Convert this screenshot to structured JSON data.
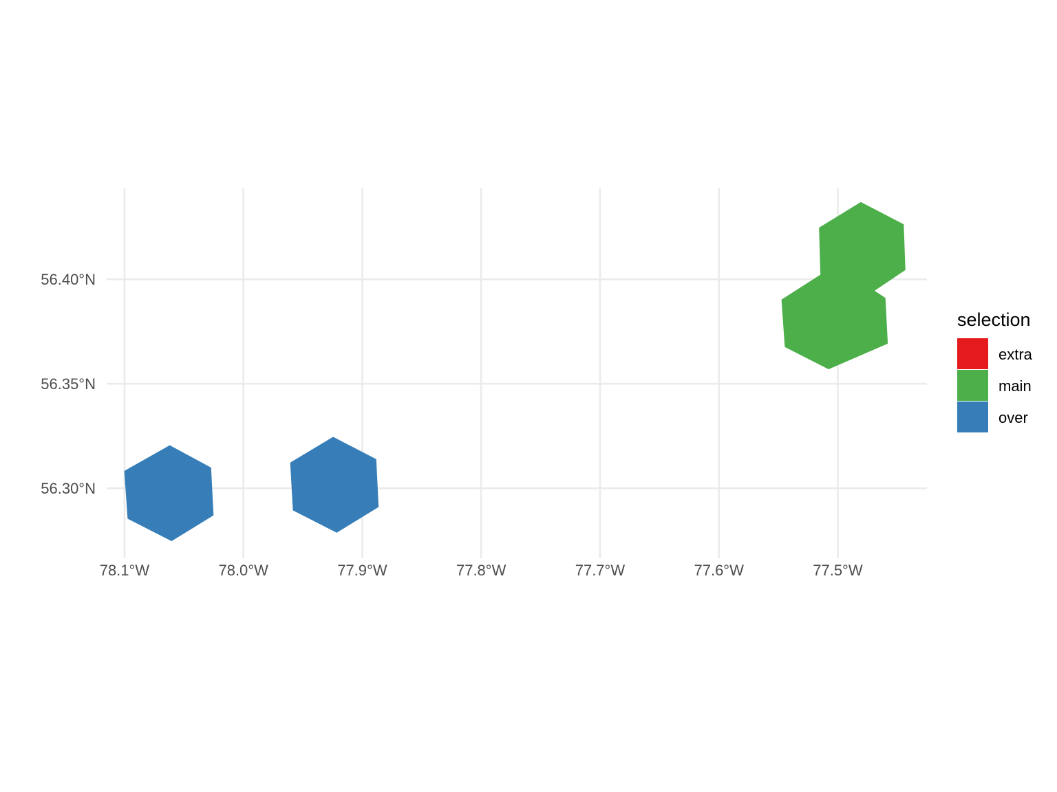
{
  "chart_data": {
    "type": "map",
    "xlim": [
      -78.115,
      -77.425
    ],
    "ylim": [
      56.2665,
      56.4435
    ],
    "x_ticks": [
      {
        "value": -78.1,
        "label": "78.1°W"
      },
      {
        "value": -78.0,
        "label": "78.0°W"
      },
      {
        "value": -77.9,
        "label": "77.9°W"
      },
      {
        "value": -77.8,
        "label": "77.8°W"
      },
      {
        "value": -77.7,
        "label": "77.7°W"
      },
      {
        "value": -77.6,
        "label": "77.6°W"
      },
      {
        "value": -77.5,
        "label": "77.5°W"
      }
    ],
    "y_ticks": [
      {
        "value": 56.3,
        "label": "56.30°N"
      },
      {
        "value": 56.35,
        "label": "56.35°N"
      },
      {
        "value": 56.4,
        "label": "56.40°N"
      }
    ],
    "grid": true,
    "legend": {
      "title": "selection",
      "position": "right",
      "entries": [
        {
          "label": "extra",
          "color": "#e41a1c"
        },
        {
          "label": "main",
          "color": "#4daf4a"
        },
        {
          "label": "over",
          "color": "#377eb8"
        }
      ]
    },
    "hexagons": [
      {
        "selection": "over",
        "center": [
          -78.062,
          56.298
        ],
        "vertices": [
          [
            -78.062,
            56.3204
          ],
          [
            -78.0274,
            56.3098
          ],
          [
            -78.0254,
            56.2871
          ],
          [
            -78.0604,
            56.2749
          ],
          [
            -78.0971,
            56.2855
          ],
          [
            -78.0999,
            56.3082
          ]
        ]
      },
      {
        "selection": "over",
        "center": [
          -77.922,
          56.302
        ],
        "vertices": [
          [
            -77.9245,
            56.3244
          ],
          [
            -77.8885,
            56.3138
          ],
          [
            -77.8865,
            56.2911
          ],
          [
            -77.9215,
            56.2789
          ],
          [
            -77.9581,
            56.2895
          ],
          [
            -77.9603,
            56.3122
          ]
        ]
      },
      {
        "selection": "main",
        "center": [
          -77.49,
          56.385
        ],
        "vertices": [
          [
            -77.4904,
            56.4024
          ],
          [
            -77.4602,
            56.391
          ],
          [
            -77.4582,
            56.3693
          ],
          [
            -77.5077,
            56.3571
          ],
          [
            -77.5443,
            56.3677
          ],
          [
            -77.5471,
            56.3902
          ],
          [
            -77.5143,
            56.4021
          ],
          [
            -77.5155,
            56.4246
          ],
          [
            -77.4806,
            56.4368
          ],
          [
            -77.4448,
            56.4262
          ],
          [
            -77.4434,
            56.4045
          ],
          [
            -77.4772,
            56.3916
          ]
        ]
      }
    ]
  }
}
